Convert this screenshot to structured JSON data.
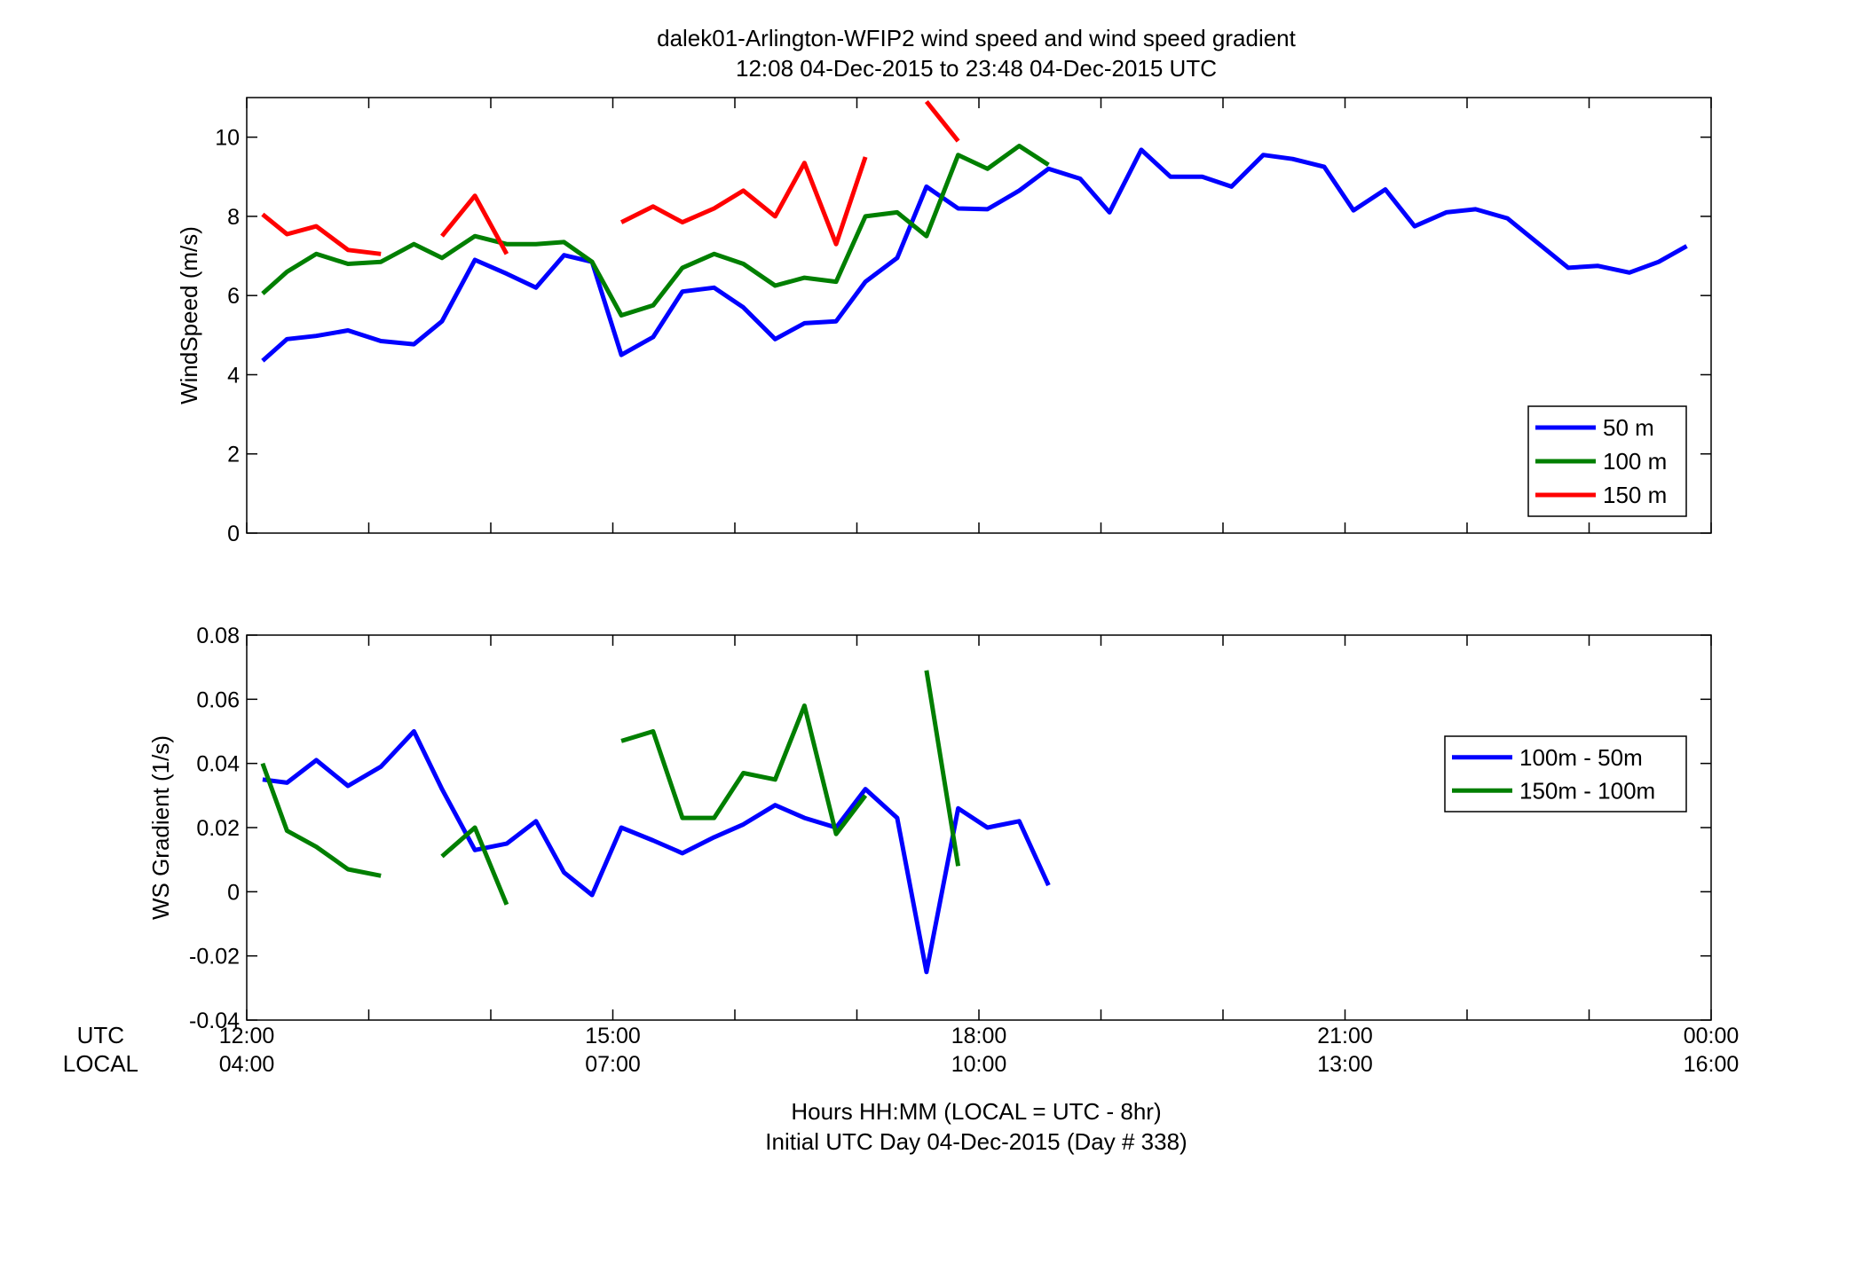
{
  "title_line1": "dalek01-Arlington-WFIP2  wind speed and wind speed gradient",
  "title_line2": "12:08 04-Dec-2015 to 23:48 04-Dec-2015  UTC",
  "xlabel_line1": "Hours HH:MM  (LOCAL = UTC - 8hr)",
  "xlabel_line2": "Initial UTC Day 04-Dec-2015 (Day # 338)",
  "row_label_utc": "UTC",
  "row_label_local": "LOCAL",
  "colors": {
    "blue": "#0000ff",
    "green": "#007f00",
    "red": "#ff0000"
  },
  "chart_data": [
    {
      "type": "line",
      "ylabel": "WindSpeed (m/s)",
      "xlim": [
        12,
        24
      ],
      "ylim": [
        0,
        11
      ],
      "yticks": [
        0,
        2,
        4,
        6,
        8,
        10
      ],
      "x_ticks_utc": [
        "12:00",
        "15:00",
        "18:00",
        "21:00",
        "00:00"
      ],
      "x_ticks_local": [
        "04:00",
        "07:00",
        "10:00",
        "13:00",
        "16:00"
      ],
      "legend_position": "lower-right",
      "series": [
        {
          "name": "50 m",
          "color": "#0000ff",
          "points": [
            [
              12.13,
              4.35
            ],
            [
              12.33,
              4.9
            ],
            [
              12.57,
              4.98
            ],
            [
              12.83,
              5.12
            ],
            [
              13.1,
              4.85
            ],
            [
              13.37,
              4.77
            ],
            [
              13.6,
              5.35
            ],
            [
              13.87,
              6.9
            ],
            [
              14.13,
              6.55
            ],
            [
              14.37,
              6.2
            ],
            [
              14.6,
              7.02
            ],
            [
              14.83,
              6.85
            ],
            [
              15.07,
              4.5
            ],
            [
              15.33,
              4.95
            ],
            [
              15.57,
              6.1
            ],
            [
              15.83,
              6.2
            ],
            [
              16.07,
              5.7
            ],
            [
              16.33,
              4.9
            ],
            [
              16.57,
              5.3
            ],
            [
              16.83,
              5.35
            ],
            [
              17.07,
              6.35
            ],
            [
              17.33,
              6.95
            ],
            [
              17.57,
              8.75
            ],
            [
              17.83,
              8.2
            ],
            [
              18.07,
              8.18
            ],
            [
              18.33,
              8.65
            ],
            [
              18.57,
              9.2
            ],
            [
              18.83,
              8.95
            ],
            [
              19.07,
              8.1
            ],
            [
              19.33,
              9.68
            ],
            [
              19.57,
              9.0
            ],
            [
              19.83,
              9.0
            ],
            [
              20.07,
              8.75
            ],
            [
              20.33,
              9.55
            ],
            [
              20.57,
              9.45
            ],
            [
              20.83,
              9.25
            ],
            [
              21.07,
              8.15
            ],
            [
              21.33,
              8.68
            ],
            [
              21.57,
              7.75
            ],
            [
              21.83,
              8.1
            ],
            [
              22.07,
              8.18
            ],
            [
              22.33,
              7.95
            ],
            [
              22.57,
              7.35
            ],
            [
              22.83,
              6.7
            ],
            [
              23.07,
              6.75
            ],
            [
              23.33,
              6.58
            ],
            [
              23.57,
              6.85
            ],
            [
              23.8,
              7.25
            ]
          ]
        },
        {
          "name": "100 m",
          "color": "#007f00",
          "points": [
            [
              12.13,
              6.05
            ],
            [
              12.33,
              6.6
            ],
            [
              12.57,
              7.05
            ],
            [
              12.83,
              6.8
            ],
            [
              13.1,
              6.85
            ],
            [
              13.37,
              7.3
            ],
            [
              13.6,
              6.95
            ],
            [
              13.87,
              7.5
            ],
            [
              14.13,
              7.3
            ],
            [
              14.37,
              7.3
            ],
            [
              14.6,
              7.35
            ],
            [
              14.83,
              6.85
            ],
            [
              15.07,
              5.5
            ],
            [
              15.33,
              5.75
            ],
            [
              15.57,
              6.7
            ],
            [
              15.83,
              7.05
            ],
            [
              16.07,
              6.8
            ],
            [
              16.33,
              6.25
            ],
            [
              16.57,
              6.45
            ],
            [
              16.83,
              6.35
            ],
            [
              17.07,
              8.0
            ],
            [
              17.33,
              8.1
            ],
            [
              17.57,
              7.5
            ],
            [
              17.83,
              9.55
            ],
            [
              18.07,
              9.2
            ],
            [
              18.33,
              9.78
            ],
            [
              18.57,
              9.3
            ]
          ]
        },
        {
          "name": "150 m",
          "color": "#ff0000",
          "segments": [
            [
              [
                12.13,
                8.05
              ],
              [
                12.33,
                7.55
              ],
              [
                12.57,
                7.75
              ],
              [
                12.83,
                7.15
              ],
              [
                13.1,
                7.05
              ]
            ],
            [
              [
                13.6,
                7.5
              ],
              [
                13.87,
                8.52
              ],
              [
                14.13,
                7.05
              ]
            ],
            [
              [
                15.07,
                7.85
              ],
              [
                15.33,
                8.25
              ],
              [
                15.57,
                7.85
              ],
              [
                15.83,
                8.2
              ],
              [
                16.07,
                8.65
              ],
              [
                16.33,
                8.0
              ],
              [
                16.57,
                9.35
              ],
              [
                16.83,
                7.3
              ],
              [
                17.07,
                9.5
              ]
            ],
            [
              [
                17.57,
                10.9
              ],
              [
                17.83,
                9.9
              ]
            ]
          ]
        }
      ]
    },
    {
      "type": "line",
      "ylabel": "WS Gradient (1/s)",
      "xlim": [
        12,
        24
      ],
      "ylim": [
        -0.04,
        0.08
      ],
      "yticks": [
        "-0.04",
        "-0.02",
        "0",
        "0.02",
        "0.04",
        "0.06",
        "0.08"
      ],
      "legend_position": "right",
      "series": [
        {
          "name": "100m - 50m",
          "color": "#0000ff",
          "points": [
            [
              12.13,
              0.035
            ],
            [
              12.33,
              0.034
            ],
            [
              12.57,
              0.041
            ],
            [
              12.83,
              0.033
            ],
            [
              13.1,
              0.039
            ],
            [
              13.37,
              0.05
            ],
            [
              13.6,
              0.032
            ],
            [
              13.87,
              0.013
            ],
            [
              14.13,
              0.015
            ],
            [
              14.37,
              0.022
            ],
            [
              14.6,
              0.006
            ],
            [
              14.83,
              -0.001
            ],
            [
              15.07,
              0.02
            ],
            [
              15.33,
              0.016
            ],
            [
              15.57,
              0.012
            ],
            [
              15.83,
              0.017
            ],
            [
              16.07,
              0.021
            ],
            [
              16.33,
              0.027
            ],
            [
              16.57,
              0.023
            ],
            [
              16.83,
              0.02
            ],
            [
              17.07,
              0.032
            ],
            [
              17.33,
              0.023
            ],
            [
              17.57,
              -0.025
            ],
            [
              17.83,
              0.026
            ],
            [
              18.07,
              0.02
            ],
            [
              18.33,
              0.022
            ],
            [
              18.57,
              0.002
            ]
          ]
        },
        {
          "name": "150m - 100m",
          "color": "#007f00",
          "segments": [
            [
              [
                12.13,
                0.04
              ],
              [
                12.33,
                0.019
              ],
              [
                12.57,
                0.014
              ],
              [
                12.83,
                0.007
              ],
              [
                13.1,
                0.005
              ]
            ],
            [
              [
                13.6,
                0.011
              ],
              [
                13.87,
                0.02
              ],
              [
                14.13,
                -0.004
              ]
            ],
            [
              [
                15.07,
                0.047
              ],
              [
                15.33,
                0.05
              ],
              [
                15.57,
                0.023
              ],
              [
                15.83,
                0.023
              ],
              [
                16.07,
                0.037
              ],
              [
                16.33,
                0.035
              ],
              [
                16.57,
                0.058
              ],
              [
                16.83,
                0.018
              ],
              [
                17.07,
                0.03
              ]
            ],
            [
              [
                17.57,
                0.069
              ],
              [
                17.83,
                0.008
              ]
            ]
          ]
        }
      ]
    }
  ]
}
